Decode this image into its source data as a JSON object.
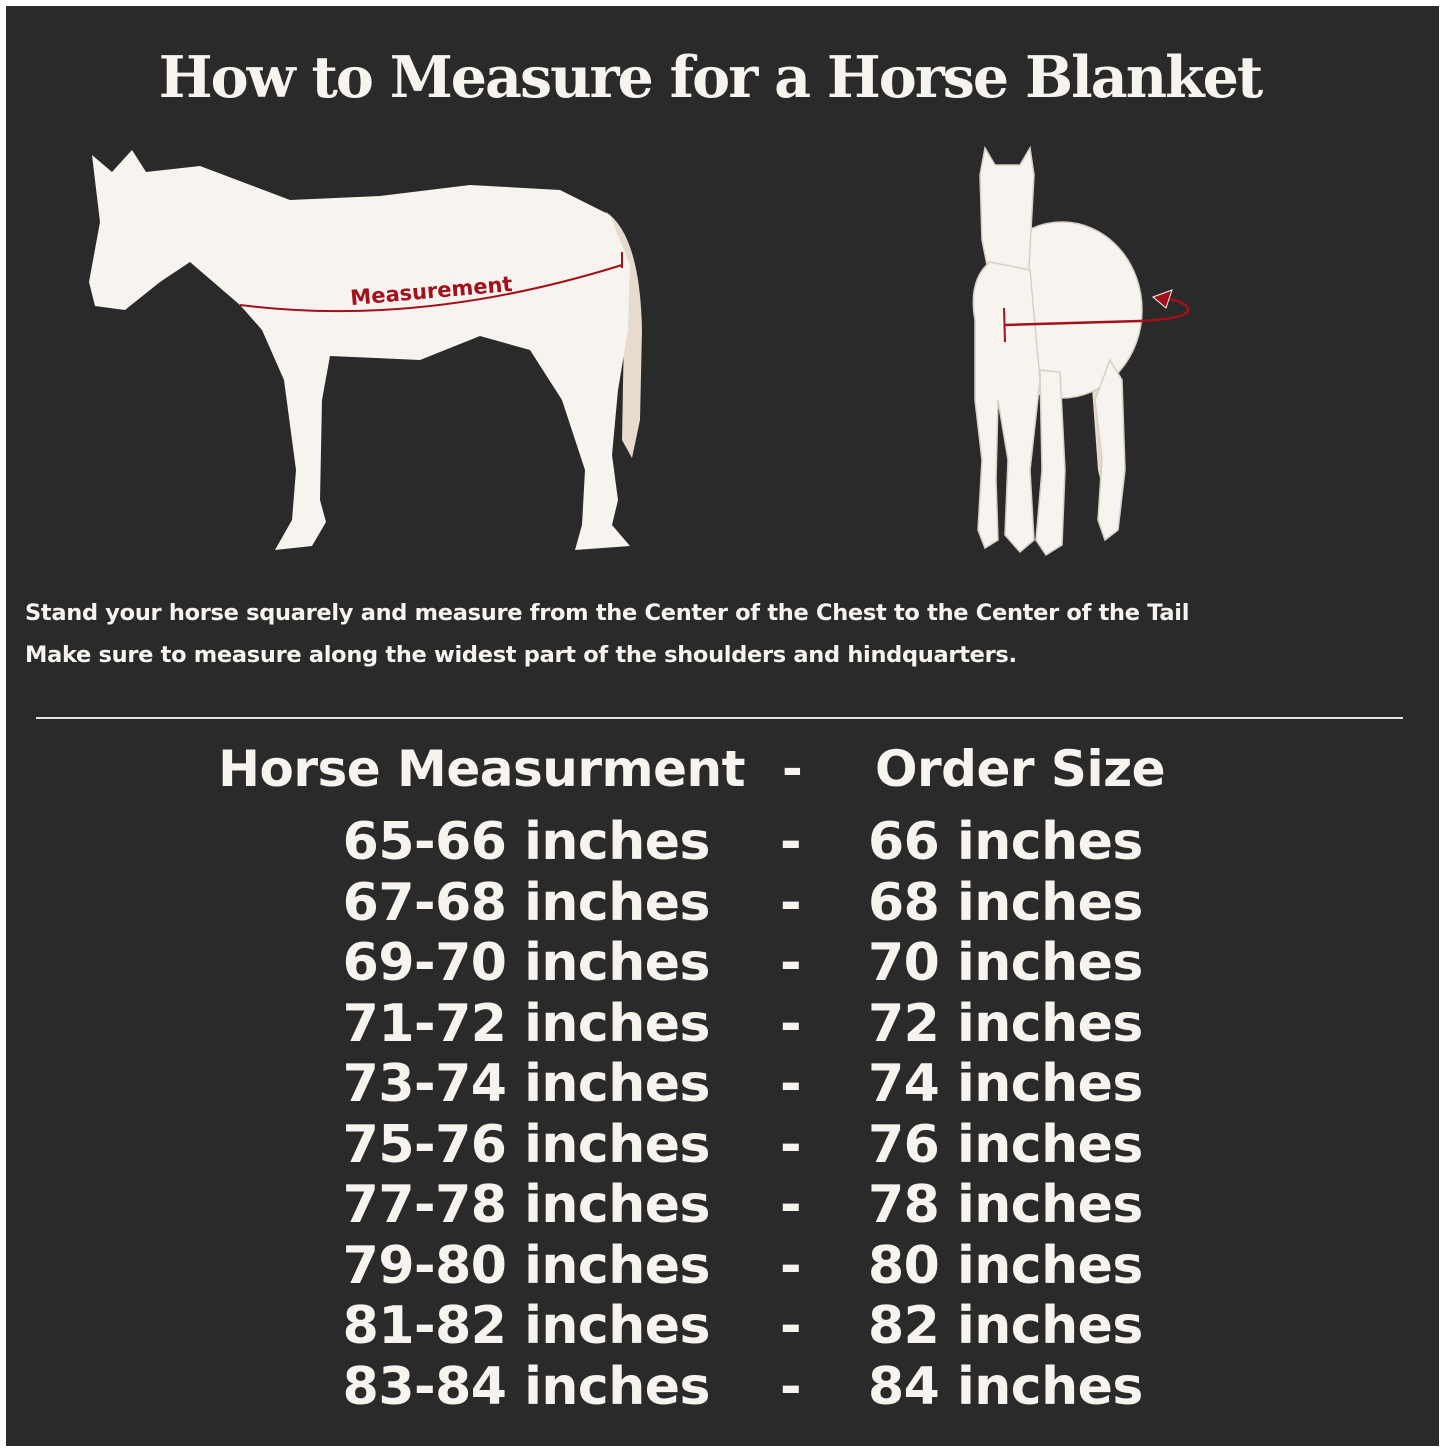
{
  "title": "How to Measure for a Horse Blanket",
  "diagram": {
    "measurement_label": "Measurement",
    "colors": {
      "background": "#2b2a2b",
      "horse": "#f7f3ee",
      "tail": "#e6dbcc",
      "measure_line": "#a3101b"
    },
    "icons": [
      "horse-side-silhouette",
      "horse-front-silhouette",
      "curved-arrow"
    ]
  },
  "instructions": [
    "Stand your horse squarely and measure from the Center of the Chest to the Center of the Tail",
    "Make sure to measure along the widest part of the shoulders and hindquarters."
  ],
  "table": {
    "headers": {
      "measurement": "Horse Measurment",
      "separator": "-",
      "size": "Order Size"
    },
    "rows": [
      {
        "measurement": "65-66 inches",
        "separator": "-",
        "size": "66 inches"
      },
      {
        "measurement": "67-68 inches",
        "separator": "-",
        "size": "68 inches"
      },
      {
        "measurement": "69-70 inches",
        "separator": "-",
        "size": "70 inches"
      },
      {
        "measurement": "71-72 inches",
        "separator": "-",
        "size": "72 inches"
      },
      {
        "measurement": "73-74 inches",
        "separator": "-",
        "size": "74 inches"
      },
      {
        "measurement": "75-76 inches",
        "separator": "-",
        "size": "76 inches"
      },
      {
        "measurement": "77-78 inches",
        "separator": "-",
        "size": "78 inches"
      },
      {
        "measurement": "79-80 inches",
        "separator": "-",
        "size": "80 inches"
      },
      {
        "measurement": "81-82 inches",
        "separator": "-",
        "size": "82 inches"
      },
      {
        "measurement": "83-84 inches",
        "separator": "-",
        "size": "84 inches"
      }
    ]
  }
}
